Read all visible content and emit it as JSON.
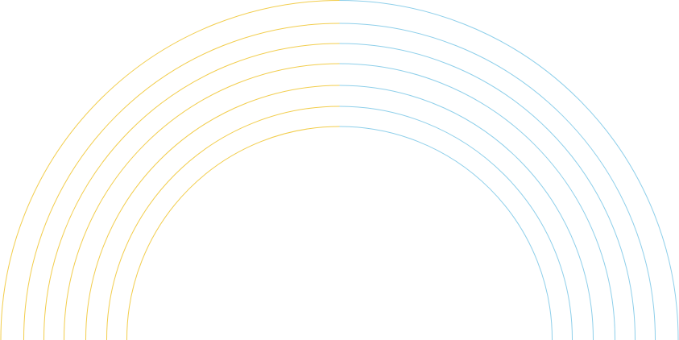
{
  "graphic": {
    "kind": "concentric-semicircle-arcs",
    "arc_count": 7,
    "colors": {
      "left_half": "#F2CD4C",
      "right_half": "#8ECFEA",
      "background": "#FFFFFF"
    }
  }
}
